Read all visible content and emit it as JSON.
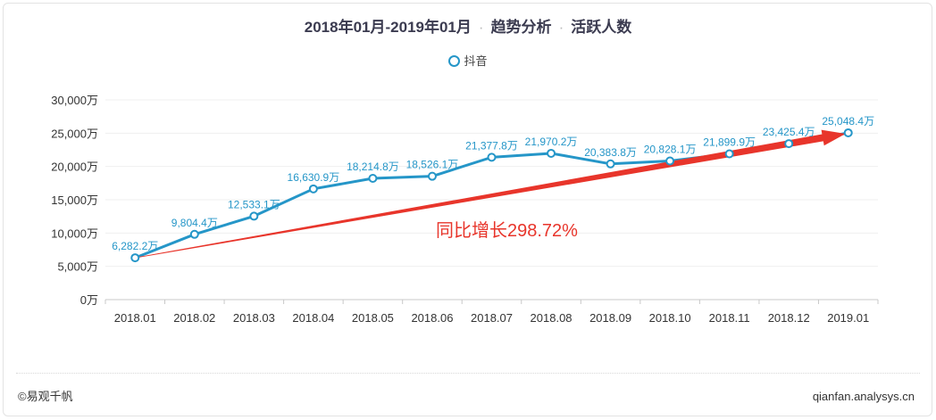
{
  "title": {
    "period": "2018年01月-2019年01月",
    "sep": "·",
    "section": "趋势分析",
    "metric": "活跃人数"
  },
  "legend": {
    "label": "抖音",
    "color": "#2596c8"
  },
  "annotation": {
    "text": "同比增长298.72%",
    "color": "#e8352b"
  },
  "footer": {
    "copyright": "©易观千帆",
    "site": "qianfan.analysys.cn"
  },
  "chart_data": {
    "type": "line",
    "categories": [
      "2018.01",
      "2018.02",
      "2018.03",
      "2018.04",
      "2018.05",
      "2018.06",
      "2018.07",
      "2018.08",
      "2018.09",
      "2018.10",
      "2018.11",
      "2018.12",
      "2019.01"
    ],
    "series": [
      {
        "name": "抖音",
        "color": "#2596c8",
        "values": [
          6282.2,
          9804.4,
          12533.1,
          16630.9,
          18214.8,
          18526.1,
          21377.8,
          21970.2,
          20383.8,
          20828.1,
          21899.9,
          23425.4,
          25048.4
        ],
        "labels": [
          "6,282.2万",
          "9,804.4万",
          "12,533.1万",
          "16,630.9万",
          "18,214.8万",
          "18,526.1万",
          "21,377.8万",
          "21,970.2万",
          "20,383.8万",
          "20,828.1万",
          "21,899.9万",
          "23,425.4万",
          "25,048.4万"
        ]
      }
    ],
    "yticks": [
      "0万",
      "5,000万",
      "10,000万",
      "15,000万",
      "20,000万",
      "25,000万",
      "30,000万"
    ],
    "ylim": [
      0,
      30000
    ],
    "grid": true,
    "legend_position": "top-center",
    "arrow": {
      "from_category": "2018.01",
      "to_category": "2019.01",
      "color": "#e8352b"
    }
  }
}
